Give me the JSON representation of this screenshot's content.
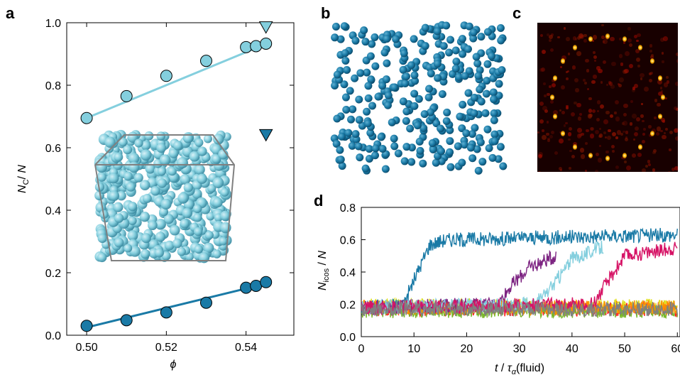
{
  "panels": {
    "a": "a",
    "b": "b",
    "c": "c",
    "d": "d"
  },
  "colors": {
    "light": "#84cfde",
    "dark": "#1a7aa6",
    "purple": "#7d2482",
    "magenta": "#d61466",
    "gray": "#808080"
  },
  "chart_data": [
    {
      "panel": "a",
      "type": "scatter",
      "xlabel": "ϕ",
      "ylabel": "N_C / N",
      "xlim": [
        0.495,
        0.552
      ],
      "ylim": [
        0.0,
        1.0
      ],
      "xticks": [
        "0.50",
        "0.52",
        "0.54"
      ],
      "yticks": [
        "0.0",
        "0.2",
        "0.4",
        "0.6",
        "0.8",
        "1.0"
      ],
      "series": [
        {
          "marker": "circle",
          "color": "#84cfde",
          "x": [
            0.5,
            0.51,
            0.52,
            0.53,
            0.54,
            0.5425,
            0.545
          ],
          "y": [
            0.695,
            0.765,
            0.83,
            0.878,
            0.922,
            0.925,
            0.933
          ],
          "fit": [
            [
              0.5,
              0.695
            ],
            [
              0.545,
              0.932
            ]
          ]
        },
        {
          "marker": "circle",
          "color": "#1a7aa6",
          "x": [
            0.5,
            0.51,
            0.52,
            0.53,
            0.54,
            0.5425,
            0.545
          ],
          "y": [
            0.03,
            0.048,
            0.073,
            0.104,
            0.152,
            0.158,
            0.17
          ],
          "fit": [
            [
              0.5,
              0.025
            ],
            [
              0.545,
              0.165
            ]
          ]
        },
        {
          "marker": "triangle-down",
          "color": "#84cfde",
          "x": [
            0.545
          ],
          "y": [
            0.985
          ]
        },
        {
          "marker": "triangle-down",
          "color": "#1a7aa6",
          "x": [
            0.545
          ],
          "y": [
            0.64
          ]
        }
      ]
    },
    {
      "panel": "d",
      "type": "line",
      "xlabel": "t / τα(fluid)",
      "ylabel": "N_icos / N",
      "xlim": [
        0,
        60
      ],
      "ylim": [
        0.0,
        0.8
      ],
      "xticks": [
        "0",
        "10",
        "20",
        "30",
        "40",
        "50",
        "60"
      ],
      "yticks": [
        "0.0",
        "0.2",
        "0.4",
        "0.6",
        "0.8"
      ],
      "series": [
        {
          "color": "#1a7aa6",
          "x": [
            0,
            8,
            10,
            13,
            16,
            60
          ],
          "y": [
            0.18,
            0.2,
            0.35,
            0.57,
            0.6,
            0.63
          ]
        },
        {
          "color": "#7d2482",
          "x": [
            0,
            26,
            28,
            32,
            37
          ],
          "y": [
            0.18,
            0.2,
            0.3,
            0.43,
            0.5
          ]
        },
        {
          "color": "#84cfde",
          "x": [
            0,
            33,
            36,
            40,
            46
          ],
          "y": [
            0.18,
            0.2,
            0.3,
            0.48,
            0.56
          ]
        },
        {
          "color": "#d61466",
          "x": [
            0,
            44,
            46,
            50,
            60
          ],
          "y": [
            0.18,
            0.2,
            0.3,
            0.5,
            0.55
          ]
        },
        {
          "color": "#ff2020",
          "x": [
            0,
            60
          ],
          "y": [
            0.17,
            0.17
          ]
        },
        {
          "color": "#e0e020",
          "x": [
            0,
            60
          ],
          "y": [
            0.19,
            0.19
          ]
        },
        {
          "color": "#7ab82a",
          "x": [
            0,
            60
          ],
          "y": [
            0.16,
            0.16
          ]
        },
        {
          "color": "#ff8c00",
          "x": [
            0,
            60
          ],
          "y": [
            0.18,
            0.18
          ]
        },
        {
          "color": "#808080",
          "x": [
            0,
            60
          ],
          "y": [
            0.17,
            0.17
          ]
        }
      ]
    }
  ]
}
